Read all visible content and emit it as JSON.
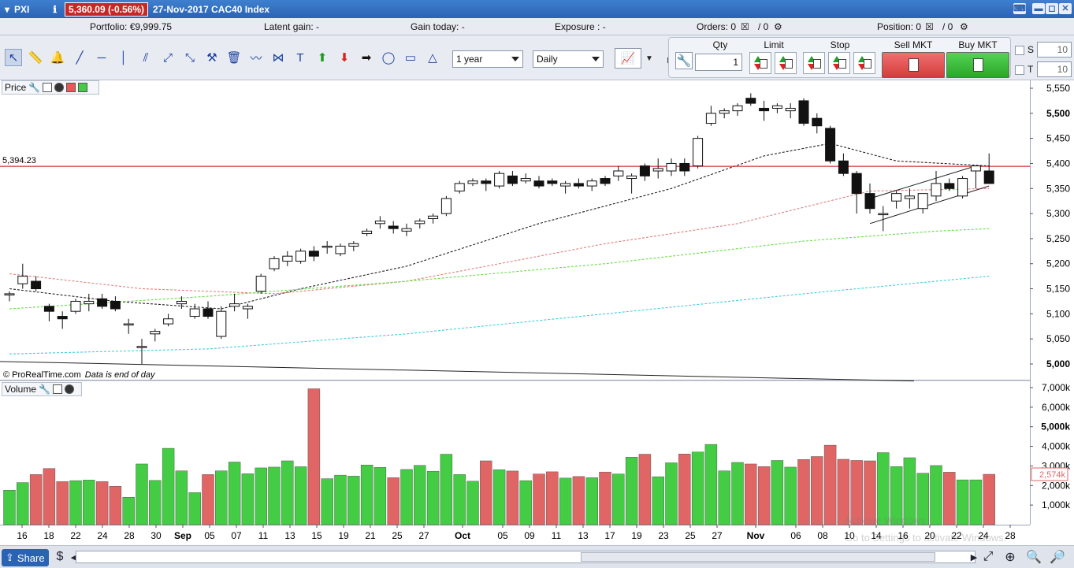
{
  "titlebar": {
    "app": "PXI",
    "price_change": "5,360.09 (-0.56%)",
    "date_instrument": "27-Nov-2017 CAC40 Index"
  },
  "infobar": {
    "portfolio": "Portfolio: €9,999.75",
    "latent_gain": "Latent gain: -",
    "gain_today": "Gain today: -",
    "exposure": "Exposure : -",
    "orders_label": "Orders: 0",
    "orders_sep": "/ 0",
    "position_label": "Position: 0",
    "position_sep": "/ 0"
  },
  "toolbar": {
    "period": "1 year",
    "interval": "Daily",
    "qty_label": "Qty",
    "qty_value": "1",
    "limit_label": "Limit",
    "stop_label": "Stop",
    "sell_label": "Sell MKT",
    "buy_label": "Buy MKT",
    "s_label": "S",
    "t_label": "T",
    "s_value": "10",
    "t_value": "10"
  },
  "panels": {
    "price_title": "Price",
    "volume_title": "Volume",
    "credit": "© ProRealTime.com",
    "data_note": "Data is end of day"
  },
  "bottombar": {
    "share_label": "Share"
  },
  "watermark": {
    "line1": "Activate Windows",
    "line2": "Go to Settings to activate Windows."
  },
  "colors": {
    "up_volume": "#44cc44",
    "down_volume": "#e06666",
    "hline": "#cc0000",
    "ma20": "#222222",
    "ma50": "#e08080",
    "ma100": "#66dd44",
    "ma200": "#44ccdd"
  },
  "chart_data": {
    "type": "candlestick",
    "instrument": "CAC40 Index",
    "interval": "Daily",
    "x_tick_labels": [
      "16",
      "18",
      "22",
      "24",
      "28",
      "30",
      "Sep",
      "05",
      "07",
      "11",
      "13",
      "15",
      "19",
      "21",
      "25",
      "27",
      "Oct",
      "05",
      "09",
      "11",
      "13",
      "17",
      "19",
      "23",
      "25",
      "27",
      "Nov",
      "06",
      "08",
      "10",
      "14",
      "16",
      "20",
      "22",
      "24",
      "28"
    ],
    "price_axis": {
      "ylim": [
        5000,
        5550
      ],
      "ticks": [
        "5,550",
        "5,500",
        "5,450",
        "5,400",
        "5,350",
        "5,300",
        "5,250",
        "5,200",
        "5,150",
        "5,100",
        "5,050",
        "5,000"
      ]
    },
    "volume_axis": {
      "ylim": [
        0,
        7000000
      ],
      "ticks": [
        "7,000k",
        "6,000k",
        "5,000k",
        "4,000k",
        "3,000k",
        "2,000k",
        "1,000k"
      ],
      "last_volume_label": "2,574k"
    },
    "horizontal_line": {
      "value": 5394.23,
      "label": "5,394.23"
    },
    "candles": [
      [
        5140,
        5145,
        5125,
        5140
      ],
      [
        5160,
        5200,
        5150,
        5175
      ],
      [
        5165,
        5175,
        5145,
        5150
      ],
      [
        5115,
        5120,
        5085,
        5105
      ],
      [
        5095,
        5105,
        5070,
        5090
      ],
      [
        5105,
        5130,
        5100,
        5125
      ],
      [
        5120,
        5140,
        5105,
        5125
      ],
      [
        5130,
        5140,
        5110,
        5115
      ],
      [
        5125,
        5135,
        5105,
        5110
      ],
      [
        5080,
        5090,
        5060,
        5080
      ],
      [
        5035,
        5050,
        5000,
        5035
      ],
      [
        5060,
        5070,
        5045,
        5065
      ],
      [
        5080,
        5100,
        5075,
        5090
      ],
      [
        5120,
        5135,
        5110,
        5125
      ],
      [
        5095,
        5120,
        5090,
        5110
      ],
      [
        5110,
        5125,
        5090,
        5095
      ],
      [
        5055,
        5115,
        5050,
        5105
      ],
      [
        5115,
        5140,
        5105,
        5120
      ],
      [
        5110,
        5120,
        5090,
        5115
      ],
      [
        5145,
        5180,
        5140,
        5175
      ],
      [
        5190,
        5215,
        5185,
        5210
      ],
      [
        5205,
        5225,
        5195,
        5215
      ],
      [
        5205,
        5230,
        5200,
        5225
      ],
      [
        5225,
        5235,
        5205,
        5215
      ],
      [
        5235,
        5245,
        5220,
        5235
      ],
      [
        5220,
        5240,
        5215,
        5235
      ],
      [
        5235,
        5245,
        5225,
        5240
      ],
      [
        5260,
        5270,
        5255,
        5265
      ],
      [
        5280,
        5295,
        5270,
        5285
      ],
      [
        5275,
        5285,
        5260,
        5270
      ],
      [
        5265,
        5280,
        5255,
        5270
      ],
      [
        5280,
        5290,
        5270,
        5285
      ],
      [
        5290,
        5300,
        5280,
        5295
      ],
      [
        5300,
        5335,
        5295,
        5330
      ],
      [
        5345,
        5365,
        5340,
        5360
      ],
      [
        5360,
        5370,
        5355,
        5365
      ],
      [
        5365,
        5370,
        5345,
        5360
      ],
      [
        5355,
        5385,
        5350,
        5380
      ],
      [
        5375,
        5385,
        5355,
        5360
      ],
      [
        5365,
        5380,
        5360,
        5370
      ],
      [
        5365,
        5375,
        5350,
        5355
      ],
      [
        5365,
        5370,
        5355,
        5360
      ],
      [
        5355,
        5365,
        5340,
        5360
      ],
      [
        5360,
        5370,
        5350,
        5355
      ],
      [
        5355,
        5370,
        5345,
        5365
      ],
      [
        5370,
        5375,
        5355,
        5360
      ],
      [
        5375,
        5395,
        5365,
        5385
      ],
      [
        5370,
        5380,
        5340,
        5375
      ],
      [
        5395,
        5400,
        5365,
        5375
      ],
      [
        5385,
        5410,
        5370,
        5390
      ],
      [
        5385,
        5410,
        5375,
        5400
      ],
      [
        5400,
        5410,
        5375,
        5385
      ],
      [
        5395,
        5455,
        5390,
        5450
      ],
      [
        5480,
        5515,
        5475,
        5500
      ],
      [
        5500,
        5510,
        5490,
        5505
      ],
      [
        5505,
        5520,
        5495,
        5515
      ],
      [
        5530,
        5540,
        5515,
        5520
      ],
      [
        5510,
        5525,
        5485,
        5505
      ],
      [
        5510,
        5520,
        5500,
        5515
      ],
      [
        5505,
        5520,
        5490,
        5510
      ],
      [
        5525,
        5530,
        5475,
        5480
      ],
      [
        5490,
        5500,
        5460,
        5475
      ],
      [
        5470,
        5475,
        5400,
        5405
      ],
      [
        5405,
        5420,
        5375,
        5380
      ],
      [
        5380,
        5385,
        5300,
        5340
      ],
      [
        5340,
        5360,
        5300,
        5310
      ],
      [
        5300,
        5315,
        5265,
        5300
      ],
      [
        5325,
        5345,
        5310,
        5340
      ],
      [
        5330,
        5350,
        5310,
        5335
      ],
      [
        5310,
        5340,
        5300,
        5340
      ],
      [
        5335,
        5385,
        5325,
        5360
      ],
      [
        5360,
        5370,
        5345,
        5350
      ],
      [
        5335,
        5375,
        5330,
        5370
      ],
      [
        5385,
        5395,
        5350,
        5395
      ],
      [
        5385,
        5420,
        5360,
        5360
      ]
    ],
    "volume_k": [
      1760,
      2150,
      2560,
      2870,
      2200,
      2250,
      2280,
      2200,
      1960,
      1400,
      3100,
      2260,
      3900,
      2750,
      1640,
      2560,
      2750,
      3200,
      2600,
      2900,
      2940,
      3260,
      2960,
      6940,
      2350,
      2530,
      2480,
      3050,
      2930,
      2400,
      2820,
      3030,
      2730,
      3600,
      2560,
      2220,
      3260,
      2810,
      2740,
      2250,
      2590,
      2700,
      2380,
      2460,
      2400,
      2690,
      2590,
      3450,
      3600,
      2450,
      3160,
      3610,
      3710,
      4100,
      2750,
      3180,
      3100,
      2970,
      3280,
      2940,
      3330,
      3480,
      4060,
      3340,
      3280,
      3260,
      3680,
      2970,
      3420,
      2630,
      3020,
      2680,
      2290,
      2290,
      2574
    ],
    "moving_averages": [
      {
        "color": "#222222",
        "points": [
          [
            0,
            5150
          ],
          [
            8,
            5125
          ],
          [
            16,
            5110
          ],
          [
            22,
            5150
          ],
          [
            30,
            5195
          ],
          [
            40,
            5280
          ],
          [
            50,
            5350
          ],
          [
            57,
            5415
          ],
          [
            62,
            5440
          ],
          [
            67,
            5405
          ],
          [
            74,
            5395
          ]
        ]
      },
      {
        "color": "#e08080",
        "points": [
          [
            0,
            5180
          ],
          [
            10,
            5150
          ],
          [
            20,
            5140
          ],
          [
            30,
            5165
          ],
          [
            45,
            5240
          ],
          [
            55,
            5280
          ],
          [
            65,
            5345
          ],
          [
            74,
            5350
          ]
        ]
      },
      {
        "color": "#66dd44",
        "points": [
          [
            0,
            5110
          ],
          [
            15,
            5135
          ],
          [
            30,
            5165
          ],
          [
            45,
            5200
          ],
          [
            60,
            5245
          ],
          [
            70,
            5265
          ],
          [
            74,
            5270
          ]
        ]
      },
      {
        "color": "#44ccdd",
        "points": [
          [
            0,
            5020
          ],
          [
            15,
            5030
          ],
          [
            30,
            5060
          ],
          [
            45,
            5100
          ],
          [
            60,
            5140
          ],
          [
            74,
            5175
          ]
        ]
      }
    ]
  }
}
